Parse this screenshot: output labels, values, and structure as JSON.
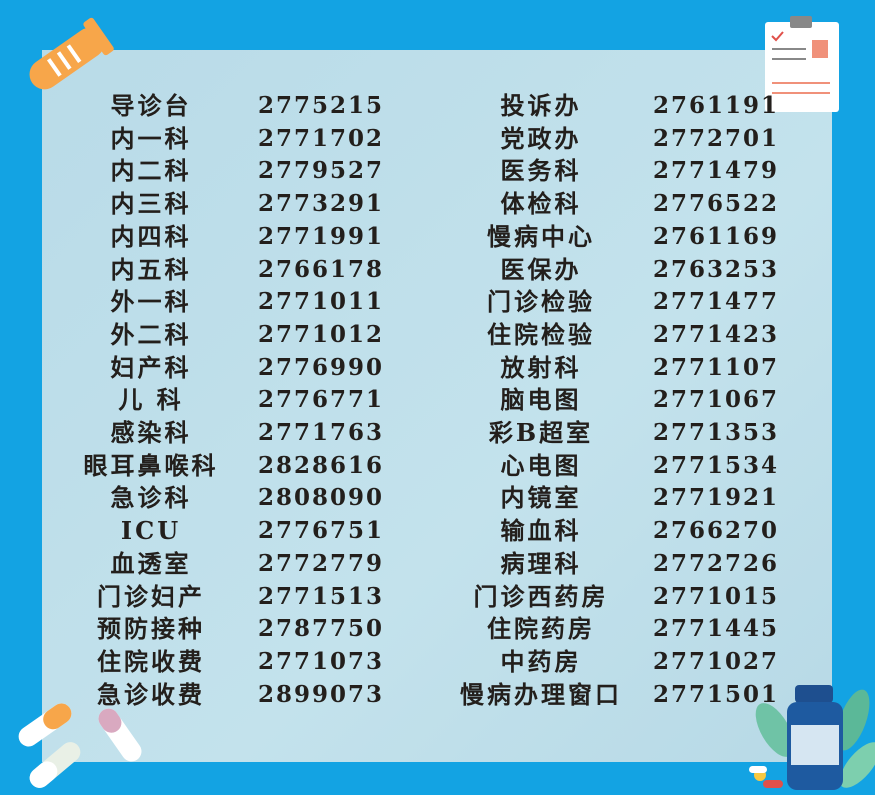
{
  "left_column": [
    {
      "name": "导诊台",
      "phone": "2775215"
    },
    {
      "name": "内一科",
      "phone": "2771702"
    },
    {
      "name": "内二科",
      "phone": "2779527"
    },
    {
      "name": "内三科",
      "phone": "2773291"
    },
    {
      "name": "内四科",
      "phone": "2771991"
    },
    {
      "name": "内五科",
      "phone": "2766178"
    },
    {
      "name": "外一科",
      "phone": "2771011"
    },
    {
      "name": "外二科",
      "phone": "2771012"
    },
    {
      "name": "妇产科",
      "phone": "2776990"
    },
    {
      "name": "儿  科",
      "phone": "2776771"
    },
    {
      "name": "感染科",
      "phone": "2771763"
    },
    {
      "name": "眼耳鼻喉科",
      "phone": "2828616"
    },
    {
      "name": "急诊科",
      "phone": "2808090"
    },
    {
      "name": "ICU",
      "phone": "2776751"
    },
    {
      "name": "血透室",
      "phone": "2772779"
    },
    {
      "name": "门诊妇产",
      "phone": "2771513"
    },
    {
      "name": "预防接种",
      "phone": "2787750"
    },
    {
      "name": "住院收费",
      "phone": "2771073"
    },
    {
      "name": "急诊收费",
      "phone": "2899073"
    }
  ],
  "right_column": [
    {
      "name": "投诉办",
      "phone": "2761191"
    },
    {
      "name": "党政办",
      "phone": "2772701"
    },
    {
      "name": "医务科",
      "phone": "2771479"
    },
    {
      "name": "体检科",
      "phone": "2776522"
    },
    {
      "name": "慢病中心",
      "phone": "2761169"
    },
    {
      "name": "医保办",
      "phone": "2763253"
    },
    {
      "name": "门诊检验",
      "phone": "2771477"
    },
    {
      "name": "住院检验",
      "phone": "2771423"
    },
    {
      "name": "放射科",
      "phone": "2771107"
    },
    {
      "name": "脑电图",
      "phone": "2771067"
    },
    {
      "name": "彩B超室",
      "phone": "2771353"
    },
    {
      "name": "心电图",
      "phone": "2771534"
    },
    {
      "name": "内镜室",
      "phone": "2771921"
    },
    {
      "name": "输血科",
      "phone": "2766270"
    },
    {
      "name": "病理科",
      "phone": "2772726"
    },
    {
      "name": "门诊西药房",
      "phone": "2771015"
    },
    {
      "name": "住院药房",
      "phone": "2771445"
    },
    {
      "name": "中药房",
      "phone": "2771027"
    },
    {
      "name": "慢病办理窗口",
      "phone": "2771501"
    }
  ],
  "colors": {
    "background": "#13a3e3",
    "panel": "#bcdde9",
    "text": "#231f1c",
    "accent_orange": "#f7a64a"
  },
  "icons": [
    "test-tube-icon",
    "clipboard-icon",
    "pills-icon",
    "medicine-bottle-icon"
  ]
}
